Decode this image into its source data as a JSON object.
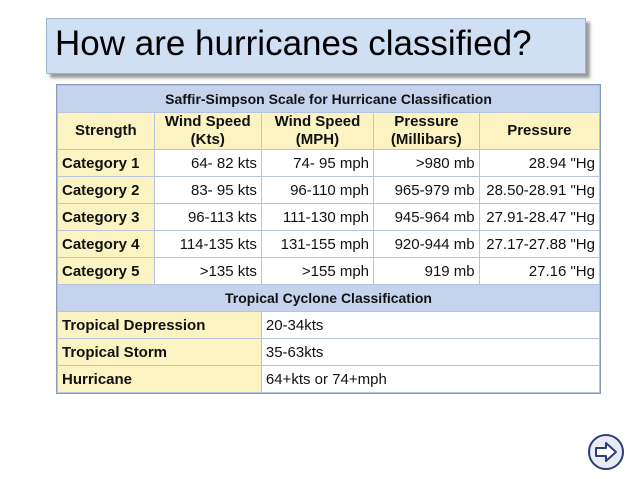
{
  "slide": {
    "title": "How are hurricanes classified?"
  },
  "table": {
    "caption": "Saffir-Simpson Scale for Hurricane Classification",
    "headers": {
      "strength": "Strength",
      "wind_kts_1": "Wind Speed",
      "wind_kts_2": "(Kts)",
      "wind_mph_1": "Wind Speed",
      "wind_mph_2": "(MPH)",
      "pressure_mb_1": "Pressure",
      "pressure_mb_2": "(Millibars)",
      "pressure_hg": "Pressure"
    },
    "rows": [
      {
        "category": "Category 1",
        "kts": "64- 82 kts",
        "mph": "74- 95 mph",
        "mb": ">980 mb",
        "hg": "28.94 \"Hg"
      },
      {
        "category": "Category 2",
        "kts": "83- 95 kts",
        "mph": "96-110 mph",
        "mb": "965-979 mb",
        "hg": "28.50-28.91 \"Hg"
      },
      {
        "category": "Category 3",
        "kts": "96-113 kts",
        "mph": "111-130 mph",
        "mb": "945-964 mb",
        "hg": "27.91-28.47 \"Hg"
      },
      {
        "category": "Category 4",
        "kts": "114-135 kts",
        "mph": "131-155 mph",
        "mb": "920-944 mb",
        "hg": "27.17-27.88 \"Hg"
      },
      {
        "category": "Category 5",
        "kts": ">135 kts",
        "mph": ">155 mph",
        "mb": "919 mb",
        "hg": "27.16 \"Hg"
      }
    ],
    "tropical_caption": "Tropical Cyclone Classification",
    "tropical_rows": [
      {
        "name": "Tropical Depression",
        "value": "20-34kts"
      },
      {
        "name": "Tropical Storm",
        "value": "35-63kts"
      },
      {
        "name": "Hurricane",
        "value": "64+kts or 74+mph"
      }
    ]
  },
  "nav": {
    "icon": "right-arrow-icon",
    "color": "#2a3f78"
  }
}
